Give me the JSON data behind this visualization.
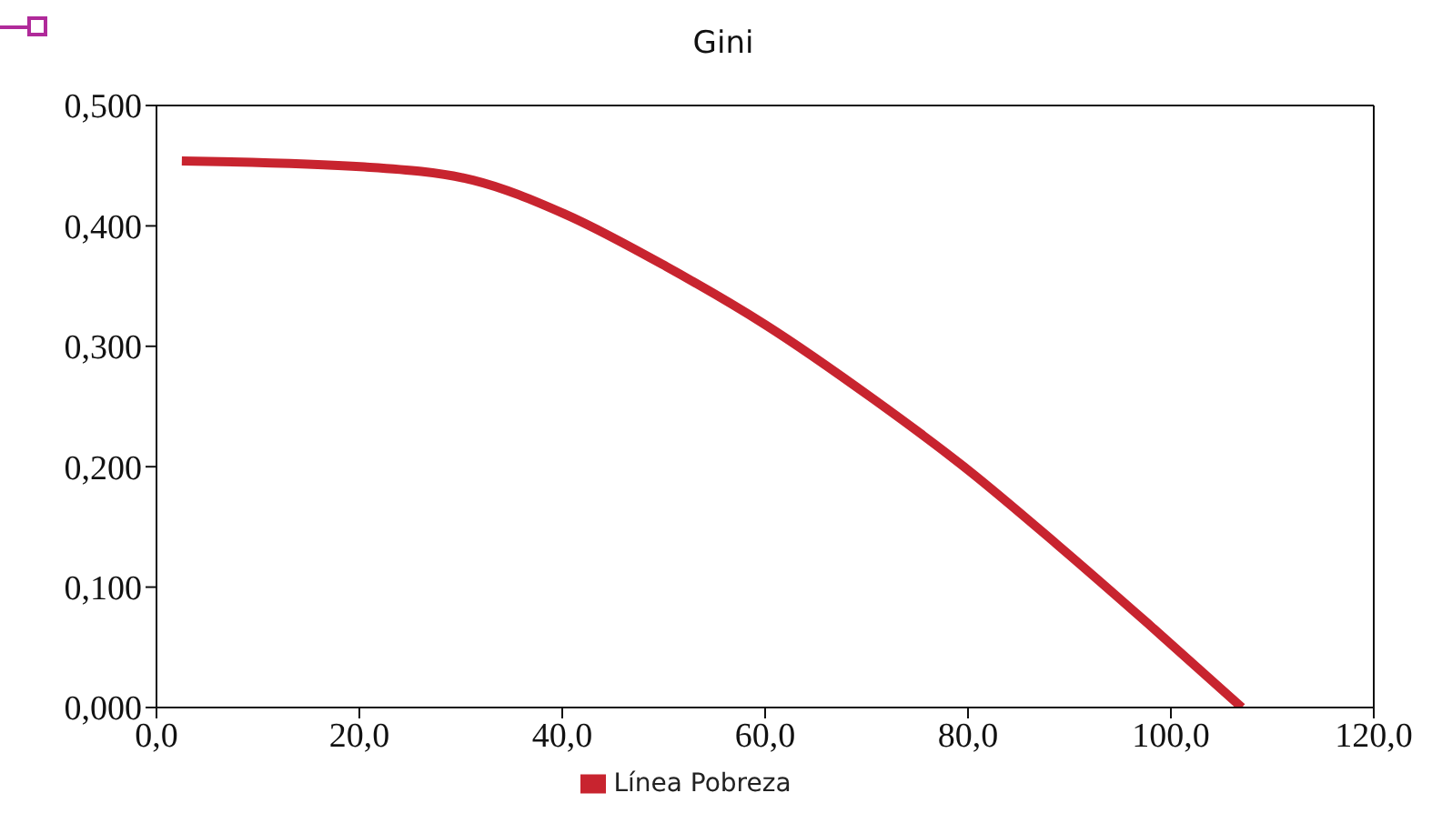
{
  "chart_data": {
    "type": "line",
    "title": "Gini",
    "x": [
      2.5,
      20.5,
      31.2,
      40.2,
      50.3,
      60,
      70.7,
      79.9,
      88.7,
      97.7,
      107
    ],
    "series": [
      {
        "name": "Línea Pobreza",
        "color": "#c8242f",
        "values": [
          0.454,
          0.449,
          0.438,
          0.41,
          0.366,
          0.318,
          0.256,
          0.198,
          0.136,
          0.07,
          0
        ]
      }
    ],
    "xlim": [
      0,
      120
    ],
    "xticks": [
      {
        "value": 0,
        "label": "0,0"
      },
      {
        "value": 20,
        "label": "20,0"
      },
      {
        "value": 40,
        "label": "40,0"
      },
      {
        "value": 60,
        "label": "60,0"
      },
      {
        "value": 80,
        "label": "80,0"
      },
      {
        "value": 100,
        "label": "100,0"
      },
      {
        "value": 120,
        "label": "120,0"
      }
    ],
    "ylim": [
      0,
      0.5
    ],
    "yticks": [
      {
        "value": 0,
        "label": "0,000"
      },
      {
        "value": 0.1,
        "label": "0,100"
      },
      {
        "value": 0.2,
        "label": "0,200"
      },
      {
        "value": 0.3,
        "label": "0,300"
      },
      {
        "value": 0.4,
        "label": "0,400"
      },
      {
        "value": 0.5,
        "label": "0,500"
      }
    ],
    "legend": "bottom",
    "marker": "none",
    "line_style": "solid"
  }
}
